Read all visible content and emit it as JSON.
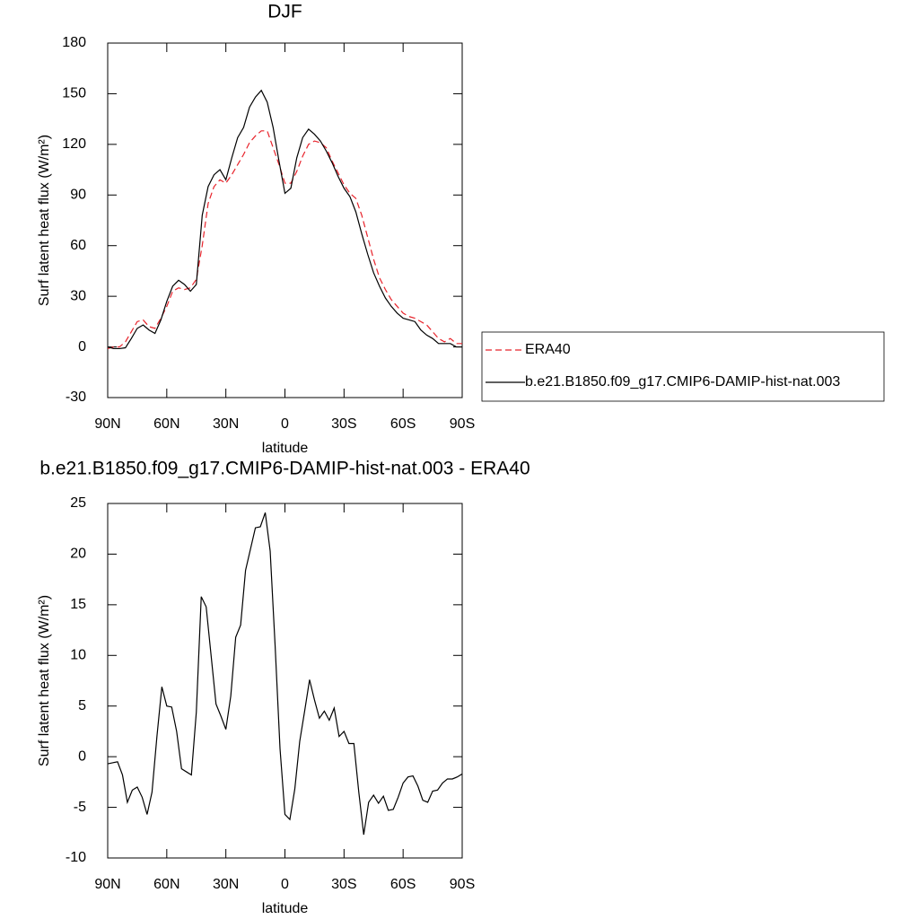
{
  "chart_data": [
    {
      "type": "line",
      "title": "DJF",
      "xlabel": "latitude",
      "ylabel": "Surf latent heat flux (W/m²)",
      "x": [
        90,
        87,
        84,
        81,
        78,
        75,
        72,
        69,
        66,
        63,
        60,
        57,
        54,
        51,
        48,
        45,
        42,
        39,
        36,
        33,
        30,
        27,
        24,
        21,
        18,
        15,
        12,
        9,
        6,
        3,
        0,
        -3,
        -6,
        -9,
        -12,
        -15,
        -18,
        -21,
        -24,
        -27,
        -30,
        -33,
        -36,
        -39,
        -42,
        -45,
        -48,
        -51,
        -54,
        -57,
        -60,
        -63,
        -66,
        -69,
        -72,
        -75,
        -78,
        -81,
        -84,
        -87,
        -90
      ],
      "series": [
        {
          "name": "ERA40",
          "color": "#e8232b",
          "linestyle": "dashed",
          "values": [
            -1,
            0,
            0,
            3,
            9,
            15,
            16,
            12,
            11,
            17,
            24,
            33,
            35,
            34,
            35,
            40,
            60,
            85,
            95,
            99,
            97,
            102,
            108,
            114,
            121,
            125,
            128,
            128,
            118,
            108,
            97,
            97,
            104,
            113,
            120,
            122,
            121,
            118,
            110,
            103,
            96,
            91,
            88,
            78,
            65,
            52,
            41,
            34,
            28,
            24,
            20,
            18,
            17,
            15,
            13,
            9,
            5,
            3,
            5,
            2,
            2
          ]
        },
        {
          "name": "b.e21.B1850.f09_g17.CMIP6-DAMIP-hist-nat.003",
          "color": "#000000",
          "linestyle": "solid",
          "values": [
            0,
            -1,
            -1,
            -0.5,
            5,
            11,
            13,
            10,
            8,
            16,
            27,
            36,
            39.5,
            37,
            33,
            37,
            78,
            95,
            102,
            105,
            99,
            112,
            124,
            130,
            142,
            148,
            152,
            145,
            130,
            110,
            91,
            94,
            112,
            124,
            129,
            126,
            122,
            116,
            109,
            101,
            94,
            89,
            80,
            67,
            55,
            44,
            36,
            29,
            24,
            20,
            17,
            16,
            15,
            10,
            7,
            5,
            2,
            2,
            2,
            0,
            0
          ]
        }
      ],
      "xlim": [
        90,
        -90
      ],
      "xticks": [
        {
          "value": 90,
          "label": "90N"
        },
        {
          "value": 60,
          "label": "60N"
        },
        {
          "value": 30,
          "label": "30N"
        },
        0,
        {
          "value": -30,
          "label": "30S"
        },
        {
          "value": -60,
          "label": "60S"
        },
        {
          "value": -90,
          "label": "90S"
        }
      ],
      "ylim": [
        -30,
        180
      ],
      "yticks": [
        -30,
        0,
        30,
        60,
        90,
        120,
        150,
        180
      ],
      "legend": "right"
    },
    {
      "type": "line",
      "title": "b.e21.B1850.f09_g17.CMIP6-DAMIP-hist-nat.003 - ERA40",
      "xlabel": "latitude",
      "ylabel": "Surf latent heat flux (W/m²)",
      "x": [
        90,
        87.5,
        85,
        82.5,
        80,
        77.5,
        75,
        72.5,
        70,
        67.5,
        65,
        62.5,
        60,
        57.5,
        55,
        52.5,
        50,
        47.5,
        45,
        42.5,
        40,
        37.5,
        35,
        32.5,
        30,
        27.5,
        25,
        22.5,
        20,
        17.5,
        15,
        12.5,
        10,
        7.5,
        5,
        2.5,
        0,
        -2.5,
        -5,
        -7.5,
        -10,
        -12.5,
        -15,
        -17.5,
        -20,
        -22.5,
        -25,
        -27.5,
        -30,
        -32.5,
        -35,
        -37.5,
        -40,
        -42.5,
        -45,
        -47.5,
        -50,
        -52.5,
        -55,
        -57.5,
        -60,
        -62.5,
        -65,
        -67.5,
        -70,
        -72.5,
        -75,
        -77.5,
        -80,
        -82.5,
        -85,
        -87.5,
        -90
      ],
      "color": "#000000",
      "values": [
        -0.7,
        -0.6,
        -0.5,
        -1.8,
        -4.5,
        -3.3,
        -3,
        -4,
        -5.7,
        -3.5,
        2,
        6.9,
        5,
        4.9,
        2.5,
        -1.2,
        -1.5,
        -1.8,
        4.4,
        15.8,
        14.8,
        10,
        5.2,
        4,
        2.7,
        6,
        11.8,
        13,
        18.4,
        20.5,
        22.6,
        22.7,
        24.1,
        20.3,
        11,
        0.8,
        -5.7,
        -6.2,
        -3.2,
        1.5,
        4.5,
        7.6,
        5.6,
        3.8,
        4.5,
        3.6,
        4.8,
        2,
        2.5,
        1.3,
        1.3,
        -3.5,
        -7.7,
        -4.5,
        -3.8,
        -4.6,
        -3.9,
        -5.3,
        -5.2,
        -4,
        -2.6,
        -2,
        -1.9,
        -2.9,
        -4.3,
        -4.5,
        -3.4,
        -3.3,
        -2.6,
        -2.2,
        -2.2,
        -2,
        -1.7
      ],
      "xlim": [
        90,
        -90
      ],
      "xticks": [
        {
          "value": 90,
          "label": "90N"
        },
        {
          "value": 60,
          "label": "60N"
        },
        {
          "value": 30,
          "label": "30N"
        },
        0,
        {
          "value": -30,
          "label": "30S"
        },
        {
          "value": -60,
          "label": "60S"
        },
        {
          "value": -90,
          "label": "90S"
        }
      ],
      "ylim": [
        -10,
        25
      ],
      "yticks": [
        -10,
        -5,
        0,
        5,
        10,
        15,
        20,
        25
      ]
    }
  ]
}
